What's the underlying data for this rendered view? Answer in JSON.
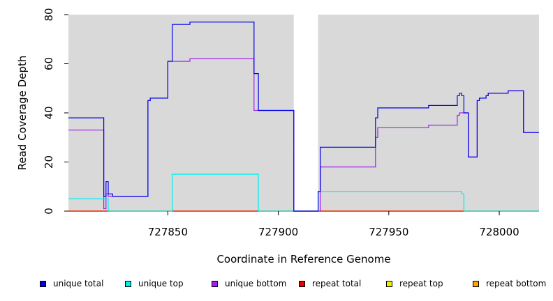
{
  "chart_data": {
    "type": "line",
    "title": "",
    "xlabel": "Coordinate in Reference Genome",
    "ylabel": "Read Coverage Depth",
    "xlim": [
      727805,
      728018
    ],
    "ylim": [
      0,
      80
    ],
    "x_ticks": [
      727850,
      727900,
      727950,
      728000
    ],
    "x_tick_labels": [
      "727850",
      "727900",
      "727950",
      "728000"
    ],
    "y_ticks": [
      0,
      20,
      40,
      60,
      80
    ],
    "y_tick_labels": [
      "0",
      "20",
      "40",
      "60",
      "80"
    ],
    "gap": [
      727907,
      727918
    ],
    "background_color": "#d9d9d9",
    "grid": false,
    "legend_position": "bottom",
    "series": [
      {
        "name": "unique total",
        "color": "#0000ee",
        "points": [
          [
            727805,
            38
          ],
          [
            727821,
            38
          ],
          [
            727821,
            6
          ],
          [
            727822,
            6
          ],
          [
            727822,
            12
          ],
          [
            727823,
            12
          ],
          [
            727823,
            7
          ],
          [
            727825,
            7
          ],
          [
            727825,
            6
          ],
          [
            727841,
            6
          ],
          [
            727841,
            45
          ],
          [
            727842,
            45
          ],
          [
            727842,
            46
          ],
          [
            727850,
            46
          ],
          [
            727850,
            61
          ],
          [
            727852,
            61
          ],
          [
            727852,
            76
          ],
          [
            727860,
            76
          ],
          [
            727860,
            77
          ],
          [
            727889,
            77
          ],
          [
            727889,
            56
          ],
          [
            727891,
            56
          ],
          [
            727891,
            41
          ],
          [
            727907,
            41
          ],
          [
            727907,
            0
          ],
          [
            727918,
            0
          ],
          [
            727918,
            8
          ],
          [
            727919,
            8
          ],
          [
            727919,
            26
          ],
          [
            727944,
            26
          ],
          [
            727944,
            38
          ],
          [
            727945,
            38
          ],
          [
            727945,
            42
          ],
          [
            727968,
            42
          ],
          [
            727968,
            43
          ],
          [
            727981,
            43
          ],
          [
            727981,
            47
          ],
          [
            727982,
            47
          ],
          [
            727982,
            48
          ],
          [
            727983,
            48
          ],
          [
            727983,
            47
          ],
          [
            727984,
            47
          ],
          [
            727984,
            40
          ],
          [
            727986,
            40
          ],
          [
            727986,
            22
          ],
          [
            727990,
            22
          ],
          [
            727990,
            45
          ],
          [
            727991,
            45
          ],
          [
            727991,
            46
          ],
          [
            727994,
            46
          ],
          [
            727994,
            47
          ],
          [
            727995,
            47
          ],
          [
            727995,
            48
          ],
          [
            728004,
            48
          ],
          [
            728004,
            49
          ],
          [
            728011,
            49
          ],
          [
            728011,
            32
          ],
          [
            728018,
            32
          ]
        ]
      },
      {
        "name": "unique top",
        "color": "#00eeee",
        "points": [
          [
            727805,
            5
          ],
          [
            727823,
            5
          ],
          [
            727823,
            0
          ],
          [
            727852,
            0
          ],
          [
            727852,
            15
          ],
          [
            727891,
            15
          ],
          [
            727891,
            0
          ],
          [
            727918,
            0
          ],
          [
            727918,
            8
          ],
          [
            727983,
            8
          ],
          [
            727983,
            7
          ],
          [
            727984,
            7
          ],
          [
            727984,
            0
          ],
          [
            728018,
            0
          ]
        ]
      },
      {
        "name": "unique bottom",
        "color": "#a020f0",
        "points": [
          [
            727805,
            33
          ],
          [
            727821,
            33
          ],
          [
            727821,
            1
          ],
          [
            727822,
            1
          ],
          [
            727822,
            7
          ],
          [
            727823,
            7
          ],
          [
            727823,
            6
          ],
          [
            727841,
            6
          ],
          [
            727841,
            45
          ],
          [
            727842,
            45
          ],
          [
            727842,
            46
          ],
          [
            727850,
            46
          ],
          [
            727850,
            61
          ],
          [
            727860,
            61
          ],
          [
            727860,
            62
          ],
          [
            727889,
            62
          ],
          [
            727889,
            41
          ],
          [
            727907,
            41
          ],
          [
            727907,
            0
          ],
          [
            727919,
            0
          ],
          [
            727919,
            18
          ],
          [
            727944,
            18
          ],
          [
            727944,
            30
          ],
          [
            727945,
            30
          ],
          [
            727945,
            34
          ],
          [
            727968,
            34
          ],
          [
            727968,
            35
          ],
          [
            727981,
            35
          ],
          [
            727981,
            39
          ],
          [
            727982,
            39
          ],
          [
            727982,
            40
          ],
          [
            727984,
            40
          ],
          [
            727984,
            40
          ],
          [
            727986,
            40
          ],
          [
            727986,
            22
          ],
          [
            727990,
            22
          ],
          [
            727990,
            45
          ],
          [
            727991,
            45
          ],
          [
            727991,
            46
          ],
          [
            727994,
            46
          ],
          [
            727994,
            47
          ],
          [
            727995,
            47
          ],
          [
            727995,
            48
          ],
          [
            728004,
            48
          ],
          [
            728004,
            49
          ],
          [
            728011,
            49
          ],
          [
            728011,
            32
          ],
          [
            728018,
            32
          ]
        ]
      },
      {
        "name": "repeat total",
        "color": "#ee0000",
        "points": [
          [
            727805,
            0
          ],
          [
            728018,
            0
          ]
        ]
      },
      {
        "name": "repeat top",
        "color": "#eeee00",
        "points": [
          [
            727805,
            0
          ],
          [
            728018,
            0
          ]
        ]
      },
      {
        "name": "repeat bottom",
        "color": "#ffa500",
        "points": [
          [
            727805,
            0
          ],
          [
            728018,
            0
          ]
        ]
      }
    ],
    "legend": [
      {
        "label": "unique total",
        "color": "#0000ee"
      },
      {
        "label": "unique top",
        "color": "#00eeee"
      },
      {
        "label": "unique bottom",
        "color": "#a020f0"
      },
      {
        "label": "repeat total",
        "color": "#ee0000"
      },
      {
        "label": "repeat top",
        "color": "#eeee00"
      },
      {
        "label": "repeat bottom",
        "color": "#ffa500"
      }
    ]
  }
}
